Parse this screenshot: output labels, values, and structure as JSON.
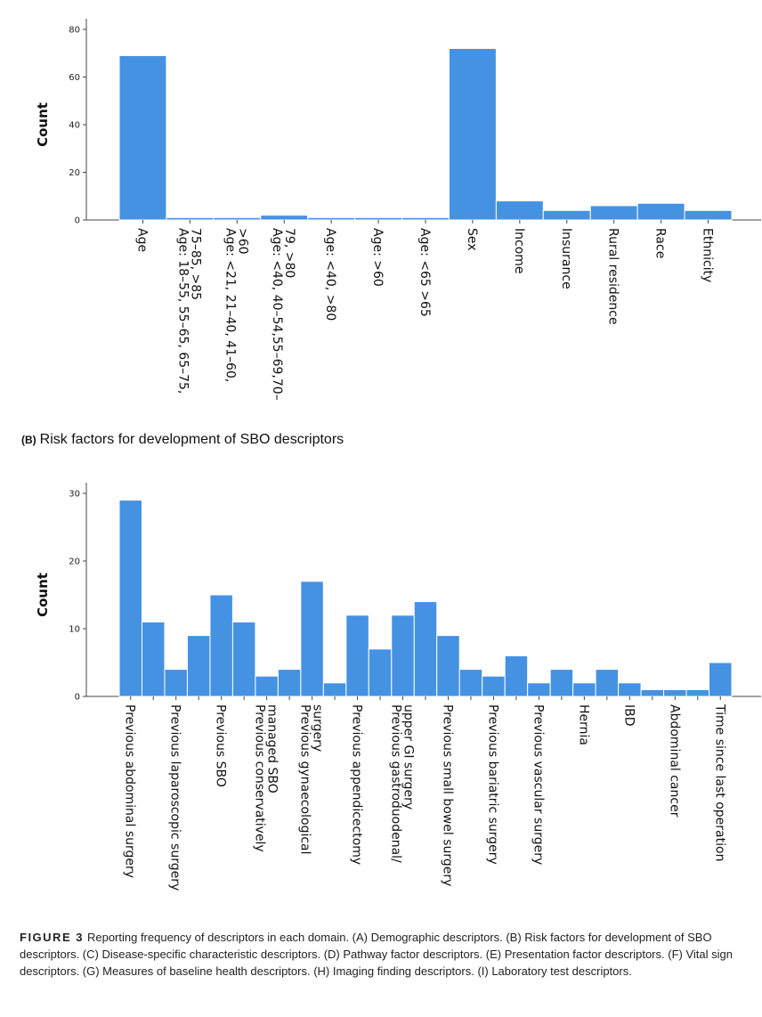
{
  "chart_data": [
    {
      "type": "bar",
      "title": "",
      "xlabel": "",
      "ylabel": "Count",
      "ylim": [
        0,
        80
      ],
      "yticks": [
        0,
        20,
        40,
        60,
        80
      ],
      "categories": [
        "Age",
        "Age: 18–55, 55–65, 65–75, 75–85, >85",
        "Age: <21, 21–40, 41–60, >60",
        "Age: <40, 40–54,55–69,70–79, >80",
        "Age: <40, >80",
        "Age: >60",
        "Age: <65 >65",
        "Sex",
        "Income",
        "Insurance",
        "Rural residence",
        "Race",
        "Ethnicity"
      ],
      "category_lines": [
        [
          "Age"
        ],
        [
          "Age: 18–55, 55–65, 65–75,",
          "75–85, >85"
        ],
        [
          "Age: <21, 21–40, 41–60,",
          ">60"
        ],
        [
          "Age: <40, 40–54,55–69,70–",
          "79, >80"
        ],
        [
          "Age: <40, >80"
        ],
        [
          "Age: >60"
        ],
        [
          "Age: <65 >65"
        ],
        [
          "Sex"
        ],
        [
          "Income"
        ],
        [
          "Insurance"
        ],
        [
          "Rural residence"
        ],
        [
          "Race"
        ],
        [
          "Ethnicity"
        ]
      ],
      "values": [
        69,
        1,
        1,
        2,
        1,
        1,
        1,
        72,
        8,
        4,
        6,
        7,
        4
      ],
      "grid": false,
      "color": "#4592e3"
    },
    {
      "type": "bar",
      "title": "",
      "xlabel": "",
      "ylabel": "Count",
      "ylim": [
        0,
        30
      ],
      "yticks": [
        0,
        10,
        20,
        30
      ],
      "categories": [
        "Previous abdominal surgery",
        "",
        "Previous laparoscopic surgery",
        "",
        "Previous SBO",
        "",
        "Previous conservatively managed SBO",
        "",
        "Previous gynaecological surgery",
        "",
        "Previous appendicectomy",
        "",
        "Previous gastroduodenal/ upper GI surgery",
        "",
        "Previous small bowel surgery",
        "",
        "Previous bariatric surgery",
        "",
        "Previous vascular surgery",
        "",
        "Hernia",
        "",
        "IBD",
        "",
        "Abdominal cancer",
        "",
        "Time since last operation"
      ],
      "category_lines": [
        [
          "Previous abdominal surgery"
        ],
        [],
        [
          "Previous laparoscopic surgery"
        ],
        [],
        [
          "Previous SBO"
        ],
        [],
        [
          "Previous conservatively",
          "managed SBO"
        ],
        [],
        [
          "Previous gynaecological",
          "surgery"
        ],
        [],
        [
          "Previous appendicectomy"
        ],
        [],
        [
          "Previous gastroduodenal/",
          "upper GI surgery"
        ],
        [],
        [
          "Previous small bowel surgery"
        ],
        [],
        [
          "Previous bariatric surgery"
        ],
        [],
        [
          "Previous vascular surgery"
        ],
        [],
        [
          "Hernia"
        ],
        [],
        [
          "IBD"
        ],
        [],
        [
          "Abdominal cancer"
        ],
        [],
        [
          "Time since last operation"
        ]
      ],
      "values": [
        29,
        11,
        4,
        9,
        15,
        11,
        3,
        4,
        17,
        2,
        12,
        7,
        12,
        14,
        9,
        4,
        3,
        6,
        2,
        4,
        2,
        4,
        2,
        1,
        1,
        1,
        5
      ],
      "grid": false,
      "color": "#4592e3"
    }
  ],
  "subtitle_b": {
    "tag": "(B)",
    "text": "Risk factors for development of SBO descriptors"
  },
  "caption": {
    "label": "FIGURE 3",
    "text": "Reporting frequency of descriptors in each domain. (A) Demographic descriptors. (B) Risk factors for development of SBO descriptors. (C) Disease-specific characteristic descriptors. (D) Pathway factor descriptors. (E) Presentation factor descriptors. (F) Vital sign descriptors. (G) Measures of baseline health descriptors. (H) Imaging finding descriptors. (I) Laboratory test descriptors."
  }
}
